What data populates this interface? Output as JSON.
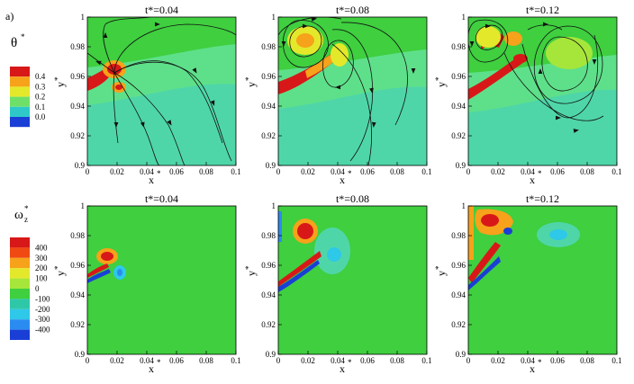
{
  "figure_label": "a)",
  "colors": {
    "background_field": "#3fcf3f",
    "lower_field": "#4fd6a8",
    "mid_field": "#5ee08a",
    "stream": "#111111"
  },
  "rows": [
    {
      "legend": {
        "symbol": "θ",
        "superscript": "*",
        "subscript": "",
        "labels": [
          "0.4",
          "0.3",
          "0.2",
          "0.1",
          "0.0"
        ],
        "colors": [
          "#d81818",
          "#f6a21a",
          "#e4e82a",
          "#6ee06a",
          "#2ec8c8",
          "#1a3fd6"
        ]
      },
      "panels": [
        {
          "title": "t*=0.04"
        },
        {
          "title": "t*=0.08"
        },
        {
          "title": "t*=0.12"
        }
      ]
    },
    {
      "legend": {
        "symbol": "ω",
        "superscript": "*",
        "subscript": "z",
        "labels": [
          "400",
          "300",
          "200",
          "100",
          "0",
          "-100",
          "-200",
          "-300",
          "-400"
        ],
        "colors": [
          "#d81818",
          "#f04a12",
          "#f6a21a",
          "#e4e82a",
          "#a6e63a",
          "#3fcf3f",
          "#2ec8a8",
          "#2ec8e8",
          "#2a8cf0",
          "#1a3fd6"
        ]
      },
      "panels": [
        {
          "title": "t*=0.04"
        },
        {
          "title": "t*=0.08"
        },
        {
          "title": "t*=0.12"
        }
      ]
    }
  ],
  "axes": {
    "x_label": "x",
    "x_label_sup": "*",
    "y_label": "y",
    "y_label_sup": "*",
    "x_ticks": [
      "0",
      "0.02",
      "0.04",
      "0.06",
      "0.08",
      "0.1"
    ],
    "y_ticks": [
      "1",
      "0.98",
      "0.96",
      "0.94",
      "0.92",
      "0.9"
    ],
    "x_range": [
      0,
      0.1
    ],
    "y_range": [
      0.9,
      1.0
    ]
  }
}
